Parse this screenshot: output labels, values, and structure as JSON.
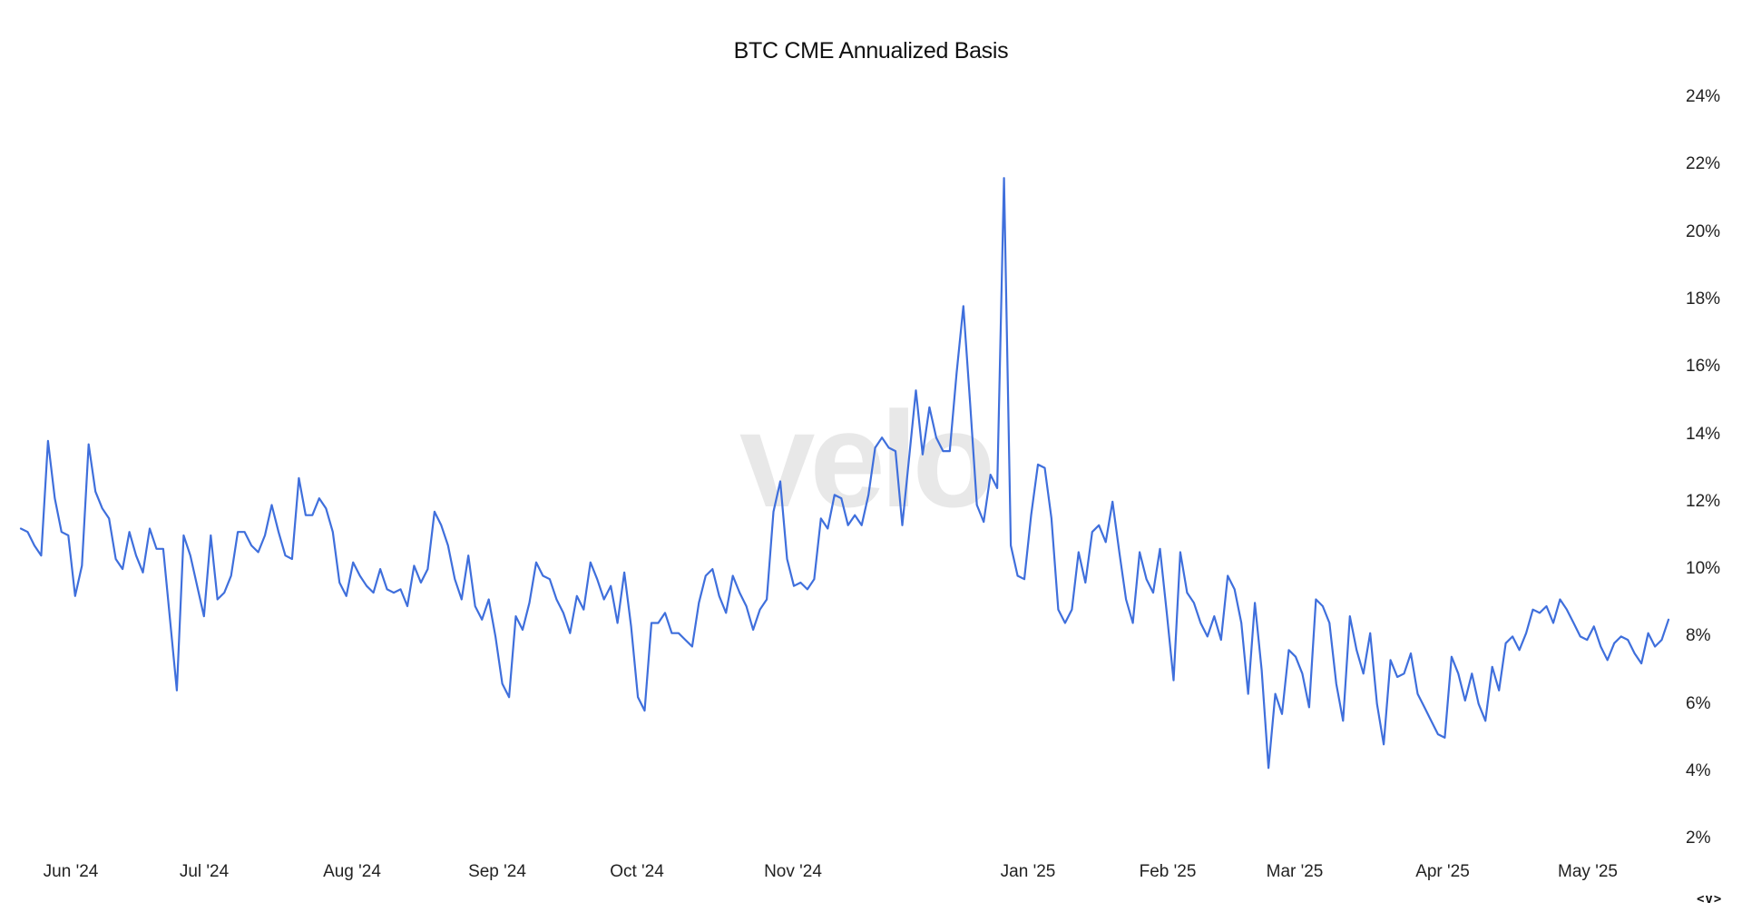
{
  "chart_data": {
    "type": "line",
    "title": "BTC CME Annualized Basis",
    "xlabel": "",
    "ylabel": "",
    "y_tick_labels": [
      "24%",
      "22%",
      "20%",
      "18%",
      "16%",
      "14%",
      "12%",
      "10%",
      "8%",
      "6%",
      "4%",
      "2%"
    ],
    "x_tick_labels": [
      "Jun '24",
      "Jul '24",
      "Aug '24",
      "Sep '24",
      "Oct '24",
      "Nov '24",
      "Jan '25",
      "Feb '25",
      "Mar '25",
      "Apr '25",
      "May '25"
    ],
    "ylim": [
      2,
      24
    ],
    "y_axis_position": "right",
    "grid": false,
    "legend": null,
    "line_color": "#3f6fdc",
    "series": [
      {
        "name": "BTC CME Annualized Basis (%)",
        "values": [
          11.2,
          11.1,
          10.7,
          10.4,
          13.8,
          12.1,
          11.1,
          11.0,
          9.2,
          10.1,
          13.7,
          12.3,
          11.8,
          11.5,
          10.3,
          10.0,
          11.1,
          10.4,
          9.9,
          11.2,
          10.6,
          10.6,
          8.5,
          6.4,
          11.0,
          10.4,
          9.5,
          8.6,
          11.0,
          9.1,
          9.3,
          9.8,
          11.1,
          11.1,
          10.7,
          10.5,
          11.0,
          11.9,
          11.1,
          10.4,
          10.3,
          12.7,
          11.6,
          11.6,
          12.1,
          11.8,
          11.1,
          9.6,
          9.2,
          10.2,
          9.8,
          9.5,
          9.3,
          10.0,
          9.4,
          9.3,
          9.4,
          8.9,
          10.1,
          9.6,
          10.0,
          11.7,
          11.3,
          10.7,
          9.7,
          9.1,
          10.4,
          8.9,
          8.5,
          9.1,
          8.0,
          6.6,
          6.2,
          8.6,
          8.2,
          9.0,
          10.2,
          9.8,
          9.7,
          9.1,
          8.7,
          8.1,
          9.2,
          8.8,
          10.2,
          9.7,
          9.1,
          9.5,
          8.4,
          9.9,
          8.3,
          6.2,
          5.8,
          8.4,
          8.4,
          8.7,
          8.1,
          8.1,
          7.9,
          7.7,
          9.0,
          9.8,
          10.0,
          9.2,
          8.7,
          9.8,
          9.3,
          8.9,
          8.2,
          8.8,
          9.1,
          11.7,
          12.6,
          10.3,
          9.5,
          9.6,
          9.4,
          9.7,
          11.5,
          11.2,
          12.2,
          12.1,
          11.3,
          11.6,
          11.3,
          12.2,
          13.6,
          13.9,
          13.6,
          13.5,
          11.3,
          13.3,
          15.3,
          13.4,
          14.8,
          13.9,
          13.5,
          13.5,
          15.8,
          17.8,
          14.9,
          11.9,
          11.4,
          12.8,
          12.4,
          21.6,
          10.7,
          9.8,
          9.7,
          11.6,
          13.1,
          13.0,
          11.5,
          8.8,
          8.4,
          8.8,
          10.5,
          9.6,
          11.1,
          11.3,
          10.8,
          12.0,
          10.5,
          9.1,
          8.4,
          10.5,
          9.7,
          9.3,
          10.6,
          8.7,
          6.7,
          10.5,
          9.3,
          9.0,
          8.4,
          8.0,
          8.6,
          7.9,
          9.8,
          9.4,
          8.4,
          6.3,
          9.0,
          7.0,
          4.1,
          6.3,
          5.7,
          7.6,
          7.4,
          6.9,
          5.9,
          9.1,
          8.9,
          8.4,
          6.6,
          5.5,
          8.6,
          7.6,
          6.9,
          8.1,
          6.0,
          4.8,
          7.3,
          6.8,
          6.9,
          7.5,
          6.3,
          5.9,
          5.5,
          5.1,
          5.0,
          7.4,
          6.9,
          6.1,
          6.9,
          6.0,
          5.5,
          7.1,
          6.4,
          7.8,
          8.0,
          7.6,
          8.1,
          8.8,
          8.7,
          8.9,
          8.4,
          9.1,
          8.8,
          8.4,
          8.0,
          7.9,
          8.3,
          7.7,
          7.3,
          7.8,
          8.0,
          7.9,
          7.5,
          7.2,
          8.1,
          7.7,
          7.9,
          8.5
        ]
      }
    ]
  },
  "watermark": "velo",
  "axis_toggle_label": "<v>"
}
